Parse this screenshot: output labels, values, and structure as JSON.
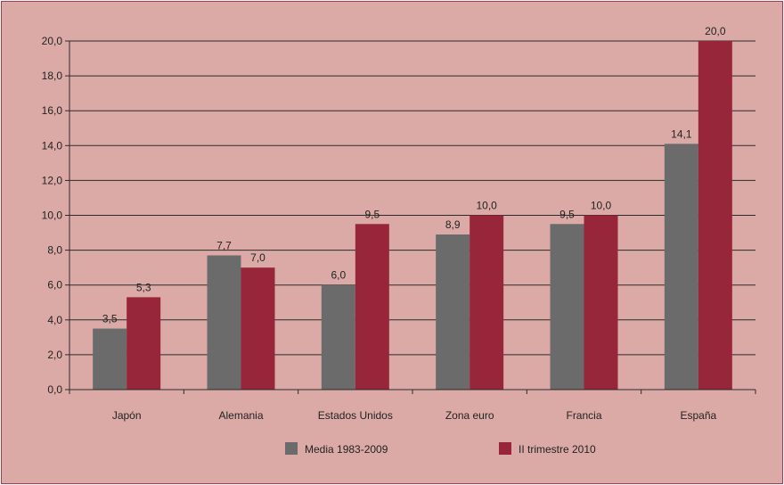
{
  "chart_data": {
    "type": "bar",
    "categories": [
      "Japón",
      "Alemania",
      "Estados Unidos",
      "Zona euro",
      "Francia",
      "España"
    ],
    "series": [
      {
        "name": "Media 1983-2009",
        "values": [
          3.5,
          7.7,
          6.0,
          8.9,
          9.5,
          14.1
        ],
        "labels": [
          "3,5",
          "7,7",
          "6,0",
          "8,9",
          "9,5",
          "14,1"
        ],
        "color": "#6b6b6b"
      },
      {
        "name": "II trimestre 2010",
        "values": [
          5.3,
          7.0,
          9.5,
          10.0,
          10.0,
          20.0
        ],
        "labels": [
          "5,3",
          "7,0",
          "9,5",
          "10,0",
          "10,0",
          "20,0"
        ],
        "color": "#98263a"
      }
    ],
    "ylim": [
      0,
      20
    ],
    "yticks": [
      "0,0",
      "2,0",
      "4,0",
      "6,0",
      "8,0",
      "10,0",
      "12,0",
      "14,0",
      "16,0",
      "18,0",
      "20,0"
    ],
    "grid": true,
    "legend_position": "bottom-center",
    "background_color": "#dcaaa6",
    "border_color": "#b23a48"
  }
}
